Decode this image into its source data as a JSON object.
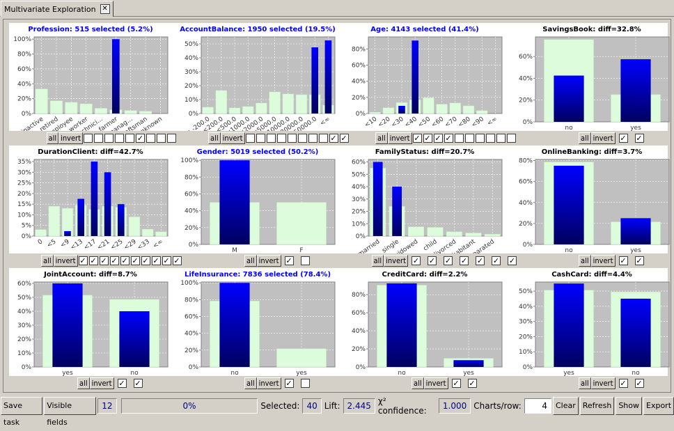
{
  "window": {
    "tab_title": "Multivariate Exploration",
    "close_label": "✕"
  },
  "controls": {
    "all_label": "all",
    "invert_label": "invert"
  },
  "charts": [
    {
      "title": "Profession: 515 selected (5.2%)",
      "selected": true,
      "categories": [
        "inactive",
        "retired",
        "employee",
        "worker",
        "technici...",
        "farmer",
        "manag...",
        "craftsman",
        "unknown"
      ],
      "base": [
        33,
        17,
        15,
        13,
        7,
        5,
        4,
        3,
        0
      ],
      "sel": [
        0,
        0,
        0,
        0,
        0,
        100,
        0,
        0,
        0
      ],
      "ymax": 103,
      "ticks": [
        "0%",
        "20%",
        "40%",
        "60%",
        "80%",
        "100%"
      ],
      "step": 20,
      "rotate": true,
      "checked": [
        false,
        false,
        false,
        false,
        false,
        true,
        false,
        false,
        false
      ]
    },
    {
      "title": "AccountBalance: 1950 selected (19.5%)",
      "selected": true,
      "categories": [
        "< -200.0",
        "<200.0",
        "<500.0",
        "<1000.0",
        "<2000.0",
        "<5000.0",
        "<10000.0",
        "<20000.0",
        "<50000.0",
        "<∞"
      ],
      "base": [
        4.5,
        16.5,
        4,
        5,
        7.5,
        15.5,
        14,
        13.5,
        13.5,
        6
      ],
      "sel": [
        0,
        0,
        0,
        0,
        0,
        0,
        0,
        0,
        47.5,
        52.5
      ],
      "ymax": 55,
      "ticks": [
        "0%",
        "10%",
        "20%",
        "30%",
        "40%",
        "50%"
      ],
      "step": 10,
      "rotate": true,
      "checked": [
        false,
        false,
        false,
        false,
        false,
        false,
        false,
        false,
        true,
        true
      ]
    },
    {
      "title": "Age: 4143 selected (41.4%)",
      "selected": true,
      "categories": [
        "<10",
        "<20",
        "<30",
        "<40",
        "<50",
        "<60",
        "<70",
        "<80",
        "<90",
        "<∞"
      ],
      "base": [
        1.5,
        7,
        13.5,
        17,
        19.5,
        11.5,
        13,
        9.5,
        3.5,
        0
      ],
      "sel": [
        0,
        0,
        9.5,
        90.5,
        0,
        0,
        0,
        0,
        0,
        0
      ],
      "ymax": 95,
      "ticks": [
        "0%",
        "20%",
        "40%",
        "60%",
        "80%"
      ],
      "step": 20,
      "rotate": true,
      "checked": [
        true,
        true,
        true,
        true,
        false,
        false,
        false,
        false,
        false,
        false
      ]
    },
    {
      "title": "SavingsBook: diff=32.8%",
      "selected": false,
      "categories": [
        "no",
        "yes"
      ],
      "base": [
        75.5,
        25
      ],
      "sel": [
        42.5,
        57.5
      ],
      "ymax": 78,
      "ticks": [
        "0%",
        "20%",
        "40%",
        "60%"
      ],
      "step": 20,
      "rotate": false,
      "checked": [
        true,
        true
      ]
    },
    {
      "title": "DurationClient: diff=42.7%",
      "selected": false,
      "categories": [
        "0",
        "<5",
        "<9",
        "<13",
        "<17",
        "<21",
        "<25",
        "<29",
        "<33",
        "<∞"
      ],
      "base": [
        3,
        14,
        13,
        14.5,
        12.5,
        14,
        13.5,
        9,
        3.2,
        2
      ],
      "sel": [
        0,
        0,
        2.3,
        17.5,
        35,
        30,
        15,
        0,
        0,
        0
      ],
      "ymax": 36,
      "ticks": [
        "0%",
        "5%",
        "10%",
        "15%",
        "20%",
        "25%",
        "30%",
        "35%"
      ],
      "step": 5,
      "rotate": true,
      "checked": [
        true,
        true,
        true,
        true,
        true,
        true,
        true,
        true,
        true,
        true
      ]
    },
    {
      "title": "Gender: 5019 selected (50.2%)",
      "selected": true,
      "categories": [
        "M",
        "F"
      ],
      "base": [
        50,
        50
      ],
      "sel": [
        100,
        0
      ],
      "ymax": 101,
      "ticks": [
        "0%",
        "20%",
        "40%",
        "60%",
        "80%",
        "100%"
      ],
      "step": 20,
      "rotate": false,
      "checked": [
        true,
        false
      ]
    },
    {
      "title": "FamilyStatus: diff=20.7%",
      "selected": false,
      "categories": [
        "married",
        "single",
        "widowed",
        "child",
        "divorced",
        "cohabitant",
        "separated"
      ],
      "base": [
        55,
        24,
        7.5,
        7,
        3.5,
        2.5,
        1.5
      ],
      "sel": [
        60,
        40,
        0,
        0,
        0,
        0,
        0
      ],
      "ymax": 62,
      "ticks": [
        "0%",
        "10%",
        "20%",
        "30%",
        "40%",
        "50%",
        "60%"
      ],
      "step": 10,
      "rotate": true,
      "checked": [
        true,
        true,
        true,
        true,
        true,
        true,
        true
      ]
    },
    {
      "title": "OnlineBanking: diff=3.7%",
      "selected": false,
      "categories": [
        "no",
        "yes"
      ],
      "base": [
        78.5,
        21.5
      ],
      "sel": [
        75,
        25
      ],
      "ymax": 81,
      "ticks": [
        "0%",
        "20%",
        "40%",
        "60%",
        "80%"
      ],
      "step": 20,
      "rotate": false,
      "checked": [
        true,
        true
      ]
    },
    {
      "title": "JointAccount: diff=8.7%",
      "selected": false,
      "categories": [
        "yes",
        "no"
      ],
      "base": [
        51.5,
        48.5
      ],
      "sel": [
        60,
        40
      ],
      "ymax": 61,
      "ticks": [
        "0%",
        "10%",
        "20%",
        "30%",
        "40%",
        "50%",
        "60%"
      ],
      "step": 10,
      "rotate": false,
      "checked": [
        true,
        true
      ]
    },
    {
      "title": "LifeInsurance: 7836 selected (78.4%)",
      "selected": true,
      "categories": [
        "no",
        "yes"
      ],
      "base": [
        78.4,
        21.6
      ],
      "sel": [
        100,
        0
      ],
      "ymax": 101,
      "ticks": [
        "0%",
        "20%",
        "40%",
        "60%",
        "80%",
        "100%"
      ],
      "step": 20,
      "rotate": false,
      "checked": [
        true,
        false
      ]
    },
    {
      "title": "CreditCard: diff=2.2%",
      "selected": false,
      "categories": [
        "no",
        "yes"
      ],
      "base": [
        90.5,
        9.5
      ],
      "sel": [
        92.5,
        7.5
      ],
      "ymax": 94,
      "ticks": [
        "0%",
        "20%",
        "40%",
        "60%",
        "80%"
      ],
      "step": 20,
      "rotate": false,
      "checked": [
        true,
        true
      ]
    },
    {
      "title": "CashCard: diff=4.4%",
      "selected": false,
      "categories": [
        "yes",
        "no"
      ],
      "base": [
        50.6,
        49.4
      ],
      "sel": [
        55,
        45
      ],
      "ymax": 56,
      "ticks": [
        "0%",
        "10%",
        "20%",
        "30%",
        "40%",
        "50%"
      ],
      "step": 10,
      "rotate": false,
      "checked": [
        true,
        true
      ]
    }
  ],
  "toolbar": {
    "save_task": "Save task",
    "visible_fields": "Visible fields",
    "visible_count": "12",
    "progress": "0%",
    "progress_value": 0,
    "selected_label": "Selected:",
    "selected_value": "40",
    "lift_label": "Lift:",
    "lift_value": "2.445",
    "chi_label": "χ² confidence:",
    "chi_value": "1.000",
    "charts_row_label": "Charts/row:",
    "charts_row_value": "4",
    "clear": "Clear",
    "refresh": "Refresh",
    "show": "Show",
    "export": "Export"
  },
  "colors": {
    "base_bar": "#dcfcdc",
    "selected_top": "#0000ff",
    "selected_bottom": "#000060",
    "plot_bg": "#c0c0c0",
    "title_selected": "#0000ff"
  }
}
